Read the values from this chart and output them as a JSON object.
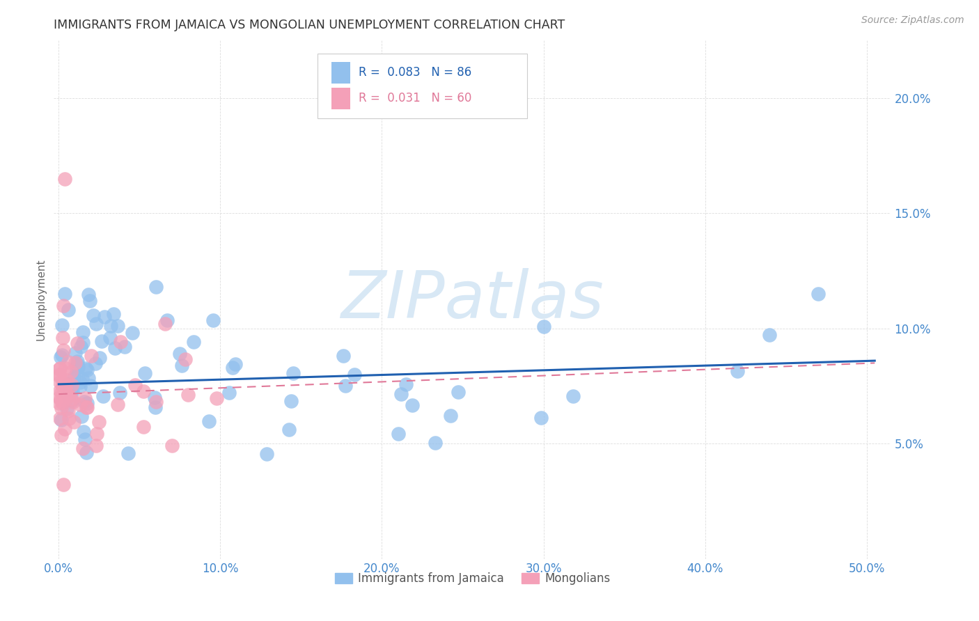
{
  "title": "IMMIGRANTS FROM JAMAICA VS MONGOLIAN UNEMPLOYMENT CORRELATION CHART",
  "source": "Source: ZipAtlas.com",
  "xlabel_ticks": [
    "0.0%",
    "10.0%",
    "20.0%",
    "30.0%",
    "40.0%",
    "50.0%"
  ],
  "xlabel_vals": [
    0.0,
    0.1,
    0.2,
    0.3,
    0.4,
    0.5
  ],
  "ylabel_ticks": [
    "5.0%",
    "10.0%",
    "15.0%",
    "20.0%"
  ],
  "ylabel_vals": [
    0.05,
    0.1,
    0.15,
    0.2
  ],
  "ylim": [
    0.0,
    0.225
  ],
  "xlim": [
    -0.003,
    0.515
  ],
  "blue_R": 0.083,
  "blue_N": 86,
  "pink_R": 0.031,
  "pink_N": 60,
  "blue_color": "#92c0ed",
  "pink_color": "#f4a0b8",
  "blue_line_color": "#2060b0",
  "pink_line_color": "#e07898",
  "watermark_text": "ZIPatlas",
  "watermark_color": "#d8e8f5",
  "title_color": "#333333",
  "tick_color": "#4488cc",
  "grid_color": "#dddddd",
  "ylabel": "Unemployment",
  "legend_label_blue": "Immigrants from Jamaica",
  "legend_label_pink": "Mongolians",
  "blue_trend_x0": 0.0,
  "blue_trend_x1": 0.505,
  "blue_trend_y0": 0.0758,
  "blue_trend_y1": 0.086,
  "pink_trend_x0": 0.0,
  "pink_trend_x1": 0.505,
  "pink_trend_y0": 0.0715,
  "pink_trend_y1": 0.085,
  "bg_color": "#ffffff"
}
